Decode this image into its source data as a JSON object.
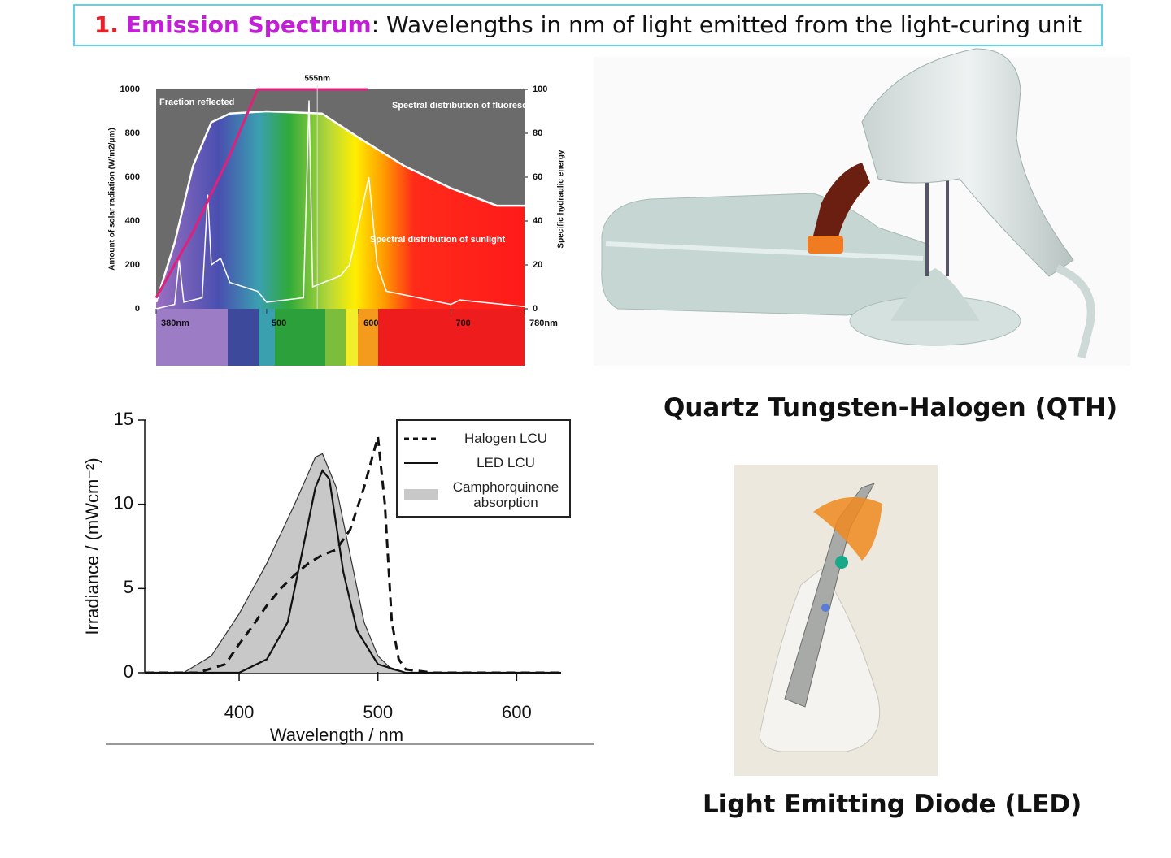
{
  "header": {
    "number": "1.",
    "term": "Emission Spectrum",
    "text": ": Wavelengths in nm of light emitted from the light-curing unit"
  },
  "chart_data": [
    {
      "type": "line",
      "ylabel": "Amount of solar radiation (W/m2/μm)",
      "y2label": "Specific hydraulic energy",
      "xlim": [
        380,
        780
      ],
      "xticks": [
        {
          "value": 380,
          "label": "380nm"
        },
        500,
        600,
        700,
        {
          "value": 780,
          "label": "780nm"
        }
      ],
      "ylim": [
        0,
        1000
      ],
      "yticks": [
        0,
        200,
        400,
        600,
        800,
        1000
      ],
      "y2lim": [
        0,
        100
      ],
      "y2ticks": [
        0,
        20,
        40,
        60,
        80,
        100
      ],
      "marker": {
        "value": 555,
        "label": "555nm"
      },
      "series": [
        {
          "name": "Spectral distribution of sunlight",
          "color": "#ffffff",
          "x": [
            380,
            400,
            420,
            440,
            460,
            500,
            560,
            600,
            650,
            700,
            750,
            780
          ],
          "values": [
            30,
            300,
            650,
            850,
            890,
            900,
            890,
            780,
            650,
            550,
            470,
            470
          ]
        },
        {
          "name": "Spectral distribution of fluorescent light",
          "color": "#ffffff",
          "x": [
            380,
            400,
            405,
            410,
            430,
            436,
            440,
            450,
            460,
            490,
            500,
            540,
            546,
            550,
            580,
            590,
            611,
            620,
            630,
            700,
            710,
            780
          ],
          "values": [
            0,
            20,
            220,
            30,
            50,
            520,
            200,
            230,
            120,
            80,
            30,
            50,
            950,
            100,
            150,
            200,
            600,
            200,
            80,
            20,
            40,
            10
          ]
        },
        {
          "name": "Fraction reflected",
          "color": "#e0207a",
          "axis": "y2",
          "x": [
            380,
            420,
            460,
            490,
            610
          ],
          "values": [
            5,
            35,
            70,
            100,
            100
          ]
        }
      ]
    },
    {
      "type": "line",
      "xlabel": "Wavelength / nm",
      "ylabel": "Irradiance / (mWcm⁻²)",
      "xlim": [
        332,
        632
      ],
      "xticks": [
        400,
        500,
        600
      ],
      "ylim": [
        0,
        15
      ],
      "yticks": [
        0,
        5,
        10,
        15
      ],
      "series": [
        {
          "name": "Halogen LCU",
          "color": "#111111",
          "dashed": true,
          "x": [
            332,
            370,
            390,
            400,
            410,
            420,
            430,
            440,
            450,
            460,
            470,
            480,
            490,
            500,
            505,
            510,
            515,
            520,
            540,
            632
          ],
          "values": [
            0,
            0,
            0.5,
            1.7,
            2.8,
            4,
            5,
            5.8,
            6.5,
            7,
            7.3,
            8.5,
            11,
            14,
            10,
            3,
            0.8,
            0.2,
            0,
            0
          ]
        },
        {
          "name": "LED LCU",
          "color": "#111111",
          "x": [
            332,
            400,
            420,
            435,
            445,
            455,
            460,
            465,
            475,
            485,
            500,
            520,
            632
          ],
          "values": [
            0,
            0,
            0.8,
            3,
            7,
            11,
            12,
            11.5,
            6,
            2.5,
            0.5,
            0,
            0
          ]
        },
        {
          "name": "Camphorquinone absorption",
          "color": "#333333",
          "fill": "#c8c8c8",
          "x": [
            360,
            380,
            400,
            420,
            440,
            455,
            460,
            470,
            480,
            490,
            500,
            510,
            520
          ],
          "values": [
            0,
            1,
            3.5,
            6.5,
            10,
            12.8,
            13,
            11,
            7,
            3,
            1,
            0.2,
            0
          ]
        }
      ]
    }
  ],
  "captions": [
    "Quartz Tungsten-Halogen (QTH)",
    "Light Emitting Diode (LED)"
  ]
}
